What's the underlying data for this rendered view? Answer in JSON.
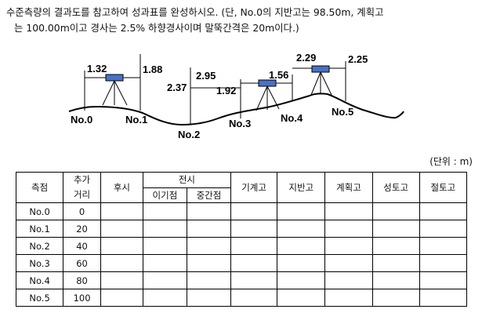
{
  "question": {
    "line1": "수준측량의 결과도를 참고하여 성과표를 완성하시오. (단, No.0의 지반고는 98.50m, 계획고",
    "line2": "는 100.00m이고 경사는 2.5% 하향경사이며 말뚝간격은 20m이다.)"
  },
  "figure": {
    "stations": [
      "No.0",
      "No.1",
      "No.2",
      "No.3",
      "No.4",
      "No.5"
    ],
    "readings": {
      "bs1": "1.32",
      "fs1": "1.88",
      "bs2": "2.95",
      "ip2": "2.37",
      "fs3": "1.92",
      "bs4": "1.56",
      "bs5": "2.29",
      "fs5": "2.25"
    }
  },
  "unit_label": "(단위 : m)",
  "table": {
    "headers": {
      "station": "측점",
      "cum_dist": "추가거리",
      "bs": "후시",
      "fs": "전시",
      "tp": "이기점",
      "ip": "중간점",
      "ih": "기계고",
      "gh": "지반고",
      "plan": "계획고",
      "fill": "성토고",
      "cut": "절토고"
    },
    "rows": [
      {
        "station": "No.0",
        "dist": "0"
      },
      {
        "station": "No.1",
        "dist": "20"
      },
      {
        "station": "No.2",
        "dist": "40"
      },
      {
        "station": "No.3",
        "dist": "60"
      },
      {
        "station": "No.4",
        "dist": "80"
      },
      {
        "station": "No.5",
        "dist": "100"
      }
    ]
  }
}
